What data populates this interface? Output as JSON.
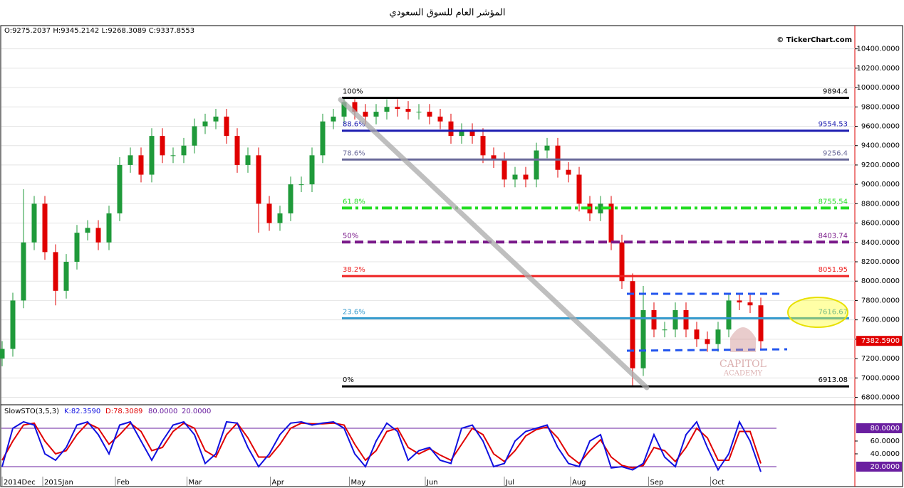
{
  "title": "المؤشر العام للسوق السعودي",
  "ohlc_header": "O:9275.2037 H:9345.2142 L:9268.3089 C:9337.8553",
  "copyright": "© TickerChart.com",
  "watermark": [
    "CAPITOL",
    "ACADEMY"
  ],
  "chart_data": [
    {
      "type": "candlestick",
      "up_color": "#1f9a3a",
      "down_color": "#e00000",
      "xlim": [
        -0.2,
        79.8
      ],
      "xticks": [
        {
          "value": 0,
          "label": "2014Dec"
        },
        {
          "value": 3.8,
          "label": "2015Jan"
        },
        {
          "value": 10.6,
          "label": "Feb"
        },
        {
          "value": 17.3,
          "label": "Mar"
        },
        {
          "value": 25.1,
          "label": "Apr"
        },
        {
          "value": 32.5,
          "label": "May"
        },
        {
          "value": 39.6,
          "label": "Jun"
        },
        {
          "value": 47,
          "label": "Jul"
        },
        {
          "value": 53.2,
          "label": "Aug"
        },
        {
          "value": 60.5,
          "label": "Sep"
        },
        {
          "value": 66.3,
          "label": "Oct"
        }
      ],
      "ylim": [
        6730,
        10640
      ],
      "yticks": [
        {
          "value": 6800,
          "label": "6800.0000"
        },
        {
          "value": 7000,
          "label": "7000.0000"
        },
        {
          "value": 7200,
          "label": "7200.0000"
        },
        {
          "value": 7400,
          "label": "7400.0000"
        },
        {
          "value": 7600,
          "label": "7600.0000"
        },
        {
          "value": 7800,
          "label": "7800.0000"
        },
        {
          "value": 8000,
          "label": "8000.0000"
        },
        {
          "value": 8200,
          "label": "8200.0000"
        },
        {
          "value": 8400,
          "label": "8400.0000"
        },
        {
          "value": 8600,
          "label": "8600.0000"
        },
        {
          "value": 8800,
          "label": "8800.0000"
        },
        {
          "value": 9000,
          "label": "9000.0000"
        },
        {
          "value": 9200,
          "label": "9200.0000"
        },
        {
          "value": 9400,
          "label": "9400.0000"
        },
        {
          "value": 9600,
          "label": "9600.0000"
        },
        {
          "value": 9800,
          "label": "9800.0000"
        },
        {
          "value": 10000,
          "label": "10000.0000"
        },
        {
          "value": 10200,
          "label": "10200.0000"
        },
        {
          "value": 10400,
          "label": "10400.0000"
        }
      ],
      "grid": true,
      "open": [
        7200,
        7300,
        7800,
        8400,
        8800,
        8300,
        7900,
        8200,
        8500,
        8550,
        8400,
        8700,
        9200,
        9300,
        9100,
        9500,
        9300,
        9300,
        9400,
        9600,
        9650,
        9700,
        9500,
        9200,
        9300,
        8800,
        8600,
        8700,
        9000,
        9000,
        9300,
        9650,
        9700,
        9850,
        9750,
        9700,
        9750,
        9800,
        9780,
        9750,
        9750,
        9700,
        9650,
        9500,
        9550,
        9500,
        9300,
        9250,
        9050,
        9100,
        9050,
        9350,
        9400,
        9150,
        9100,
        8800,
        8700,
        8800,
        8400,
        8000,
        7100,
        7700,
        7500,
        7500,
        7700,
        7500,
        7400,
        7350,
        7500,
        7800,
        7780,
        7750
      ],
      "high": [
        7380,
        7880,
        8950,
        8880,
        8880,
        8380,
        8280,
        8580,
        8630,
        8630,
        8780,
        9280,
        9380,
        9380,
        9580,
        9580,
        9380,
        9480,
        9680,
        9730,
        9780,
        9780,
        9580,
        9380,
        9380,
        8880,
        8780,
        9080,
        9080,
        9380,
        9730,
        9780,
        9894.4,
        9880,
        9830,
        9830,
        9880,
        9880,
        9860,
        9830,
        9830,
        9780,
        9730,
        9630,
        9630,
        9580,
        9380,
        9330,
        9180,
        9180,
        9430,
        9480,
        9480,
        9230,
        9180,
        8880,
        8880,
        8880,
        8480,
        8080,
        7950,
        7780,
        7580,
        7780,
        7780,
        7580,
        7480,
        7580,
        7880,
        7880,
        7860,
        7830
      ],
      "low": [
        7120,
        7220,
        7720,
        8320,
        8220,
        7750,
        7820,
        8120,
        8420,
        8320,
        8320,
        8620,
        9120,
        9020,
        9020,
        9220,
        9220,
        9220,
        9320,
        9520,
        9570,
        9420,
        9120,
        9120,
        8500,
        8520,
        8520,
        8620,
        8920,
        8920,
        9220,
        9570,
        9620,
        9670,
        9620,
        9620,
        9670,
        9700,
        9670,
        9670,
        9620,
        9570,
        9420,
        9420,
        9420,
        9220,
        9170,
        8970,
        8970,
        8970,
        8970,
        9270,
        9070,
        9020,
        8720,
        8620,
        8620,
        8320,
        7920,
        6913.08,
        7020,
        7420,
        7420,
        7420,
        7420,
        7320,
        7270,
        7270,
        7420,
        7700,
        7670,
        7300
      ],
      "close": [
        7300,
        7800,
        8400,
        8800,
        8300,
        7900,
        8200,
        8500,
        8550,
        8400,
        8700,
        9200,
        9300,
        9100,
        9500,
        9300,
        9300,
        9400,
        9600,
        9650,
        9700,
        9500,
        9200,
        9300,
        8800,
        8600,
        8700,
        9000,
        9000,
        9300,
        9650,
        9700,
        9850,
        9750,
        9700,
        9750,
        9800,
        9780,
        9750,
        9750,
        9700,
        9650,
        9500,
        9550,
        9500,
        9300,
        9250,
        9050,
        9100,
        9050,
        9350,
        9400,
        9150,
        9100,
        8800,
        8700,
        8800,
        8400,
        8000,
        7100,
        7700,
        7500,
        7500,
        7700,
        7500,
        7400,
        7350,
        7500,
        7800,
        7780,
        7750,
        7380
      ],
      "last_price": {
        "value": 7382.59,
        "label": "7382.5900",
        "color": "#e00000"
      },
      "fib_levels": [
        {
          "pct": "100%",
          "value": 9894.4,
          "label": "9894.4",
          "color": "#000000",
          "dash": "solid"
        },
        {
          "pct": "88.6%",
          "value": 9554.53,
          "label": "9554.53",
          "color": "#1c1cb0",
          "dash": "solid"
        },
        {
          "pct": "78.6%",
          "value": 9256.4,
          "label": "9256.4",
          "color": "#6a6a9a",
          "dash": "solid"
        },
        {
          "pct": "61.8%",
          "value": 8755.54,
          "label": "8755.54",
          "color": "#22dd22",
          "dash": "dashdot"
        },
        {
          "pct": "50%",
          "value": 8403.74,
          "label": "8403.74",
          "color": "#7a1a8a",
          "dash": "dash"
        },
        {
          "pct": "38.2%",
          "value": 8051.95,
          "label": "8051.95",
          "color": "#ee2222",
          "dash": "solid"
        },
        {
          "pct": "23.6%",
          "value": 7616.67,
          "label": "7616.67",
          "color": "#3399cc",
          "dash": "solid"
        },
        {
          "pct": "0%",
          "value": 6913.08,
          "label": "6913.08",
          "color": "#000000",
          "dash": "solid"
        }
      ]
    },
    {
      "type": "line",
      "header": [
        "SlowSTO(3,5,3)",
        "K:82.3590",
        "D:78.3089",
        "80.0000",
        "20.0000"
      ],
      "xlim": [
        -0.2,
        79.8
      ],
      "ylim": [
        2.2,
        113.3
      ],
      "yticks": [
        {
          "value": 40,
          "label": "40.0000"
        },
        {
          "value": 60,
          "label": "60.0000"
        }
      ],
      "levels": [
        {
          "value": 80,
          "label": "80.0000"
        },
        {
          "value": 20,
          "label": "20.0000"
        }
      ],
      "level_color": "#6a1fa0",
      "series": [
        {
          "color": "#e00000",
          "values": [
            30,
            60,
            85,
            88,
            60,
            40,
            45,
            70,
            88,
            80,
            55,
            70,
            88,
            75,
            45,
            50,
            75,
            88,
            80,
            45,
            35,
            70,
            88,
            65,
            35,
            35,
            55,
            80,
            88,
            87,
            87,
            88,
            85,
            55,
            30,
            45,
            75,
            80,
            50,
            40,
            48,
            38,
            30,
            55,
            80,
            70,
            40,
            28,
            45,
            68,
            78,
            82,
            65,
            38,
            25,
            45,
            62,
            35,
            22,
            18,
            22,
            50,
            45,
            28,
            50,
            80,
            65,
            30,
            30,
            75,
            75,
            25
          ]
        },
        {
          "color": "#1010e0",
          "values": [
            20,
            80,
            90,
            85,
            40,
            30,
            50,
            85,
            90,
            70,
            40,
            85,
            90,
            60,
            30,
            60,
            85,
            90,
            70,
            25,
            40,
            90,
            88,
            50,
            20,
            40,
            70,
            88,
            90,
            85,
            88,
            90,
            80,
            40,
            20,
            60,
            88,
            75,
            30,
            45,
            50,
            30,
            25,
            80,
            85,
            60,
            20,
            25,
            60,
            75,
            80,
            85,
            50,
            25,
            20,
            60,
            70,
            18,
            20,
            15,
            25,
            70,
            35,
            20,
            70,
            90,
            50,
            15,
            40,
            90,
            60,
            12
          ]
        }
      ]
    }
  ]
}
